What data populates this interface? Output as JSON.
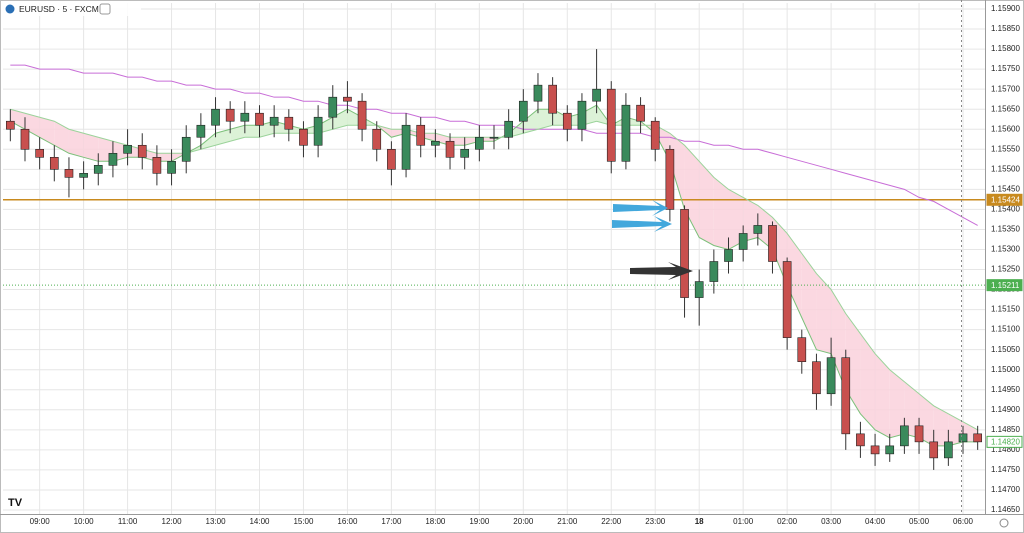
{
  "chart_data": {
    "type": "candlestick",
    "title": "EURUSD · 5 · FXCM",
    "categories": [
      null,
      null,
      "09:00",
      null,
      null,
      "10:00",
      null,
      null,
      "11:00",
      null,
      null,
      "12:00",
      null,
      null,
      "13:00",
      null,
      null,
      "14:00",
      null,
      null,
      "15:00",
      null,
      null,
      "16:00",
      null,
      null,
      "17:00",
      null,
      null,
      "18:00",
      null,
      null,
      "19:00",
      null,
      null,
      "20:00",
      null,
      null,
      "21:00",
      null,
      null,
      "22:00",
      null,
      null,
      "23:00",
      null,
      null,
      "18",
      null,
      null,
      "01:00",
      null,
      null,
      "02:00",
      null,
      null,
      "03:00",
      null,
      null,
      "04:00",
      null,
      null,
      "05:00",
      null,
      null,
      "06:00",
      null
    ],
    "open": [
      1.1562,
      1.156,
      1.1555,
      1.1553,
      1.155,
      1.1548,
      1.1549,
      1.1551,
      1.1554,
      1.1556,
      1.1553,
      1.1549,
      1.1552,
      1.1558,
      1.1561,
      1.1565,
      1.1562,
      1.1564,
      1.1561,
      1.1563,
      1.156,
      1.1556,
      1.1563,
      1.1568,
      1.1567,
      1.156,
      1.1555,
      1.155,
      1.1561,
      1.1556,
      1.1557,
      1.1553,
      1.1555,
      1.1558,
      1.1558,
      1.1562,
      1.1567,
      1.1571,
      1.1564,
      1.156,
      1.1567,
      1.157,
      1.1552,
      1.1566,
      1.1562,
      1.1555,
      1.154,
      1.1518,
      1.1522,
      1.1527,
      1.153,
      1.1534,
      1.1536,
      1.1527,
      1.1508,
      1.1502,
      1.1494,
      1.1503,
      1.1484,
      1.1481,
      1.1479,
      1.1481,
      1.1486,
      1.1482,
      1.1478,
      1.1482,
      1.1484
    ],
    "high": [
      1.1565,
      1.1563,
      1.1558,
      1.1556,
      1.1553,
      1.1552,
      1.1554,
      1.1557,
      1.156,
      1.1559,
      1.1556,
      1.1555,
      1.1561,
      1.1564,
      1.1568,
      1.1567,
      1.1567,
      1.1566,
      1.1566,
      1.1565,
      1.1562,
      1.1566,
      1.1571,
      1.1572,
      1.1569,
      1.1562,
      1.1557,
      1.1564,
      1.1563,
      1.156,
      1.1559,
      1.1558,
      1.1561,
      1.1561,
      1.1565,
      1.157,
      1.1574,
      1.1573,
      1.1566,
      1.1569,
      1.158,
      1.1572,
      1.1569,
      1.1568,
      1.1563,
      1.1556,
      1.1541,
      1.1525,
      1.153,
      1.1533,
      1.1536,
      1.1539,
      1.1537,
      1.1528,
      1.151,
      1.1504,
      1.1508,
      1.1505,
      1.1487,
      1.1484,
      1.1484,
      1.1488,
      1.1488,
      1.1485,
      1.1485,
      1.1486,
      1.1486
    ],
    "low": [
      1.1557,
      1.1552,
      1.155,
      1.1547,
      1.1543,
      1.1545,
      1.1546,
      1.1548,
      1.1551,
      1.155,
      1.1546,
      1.1546,
      1.1549,
      1.1555,
      1.1558,
      1.1559,
      1.1559,
      1.1558,
      1.1558,
      1.1557,
      1.1553,
      1.1553,
      1.156,
      1.1564,
      1.1557,
      1.1552,
      1.1546,
      1.1548,
      1.1553,
      1.1553,
      1.155,
      1.155,
      1.1552,
      1.1555,
      1.1555,
      1.1559,
      1.1564,
      1.1561,
      1.1557,
      1.1557,
      1.1564,
      1.1549,
      1.155,
      1.1559,
      1.1552,
      1.1537,
      1.1513,
      1.1511,
      1.1519,
      1.1524,
      1.1527,
      1.1531,
      1.1524,
      1.1505,
      1.1499,
      1.149,
      1.1491,
      1.148,
      1.1478,
      1.1476,
      1.1477,
      1.1479,
      1.1479,
      1.1475,
      1.1476,
      1.1479,
      1.148
    ],
    "close": [
      1.156,
      1.1555,
      1.1553,
      1.155,
      1.1548,
      1.1549,
      1.1551,
      1.1554,
      1.1556,
      1.1553,
      1.1549,
      1.1552,
      1.1558,
      1.1561,
      1.1565,
      1.1562,
      1.1564,
      1.1561,
      1.1563,
      1.156,
      1.1556,
      1.1563,
      1.1568,
      1.1567,
      1.156,
      1.1555,
      1.155,
      1.1561,
      1.1556,
      1.1557,
      1.1553,
      1.1555,
      1.1558,
      1.1558,
      1.1562,
      1.1567,
      1.1571,
      1.1564,
      1.156,
      1.1567,
      1.157,
      1.1552,
      1.1566,
      1.1562,
      1.1555,
      1.154,
      1.1518,
      1.1522,
      1.1527,
      1.153,
      1.1534,
      1.1536,
      1.1527,
      1.1508,
      1.1502,
      1.1494,
      1.1503,
      1.1484,
      1.1481,
      1.1479,
      1.1481,
      1.1486,
      1.1482,
      1.1478,
      1.1482,
      1.1484,
      1.1482
    ],
    "up_color": "#3a8a5c",
    "down_color": "#c8504e",
    "wick_color": "#333333",
    "series": [
      {
        "color": "#c86dd7",
        "values": [
          1.1576,
          1.1576,
          1.1575,
          1.1575,
          1.1575,
          1.1574,
          1.1574,
          1.1574,
          1.1573,
          1.1573,
          1.1572,
          1.1572,
          1.1571,
          1.1571,
          1.157,
          1.157,
          1.1569,
          1.1569,
          1.1568,
          1.1568,
          1.1567,
          1.1567,
          1.1566,
          1.1566,
          1.1565,
          1.1565,
          1.1564,
          1.1564,
          1.1563,
          1.1563,
          1.1562,
          1.1562,
          1.1561,
          1.1561,
          1.1561,
          1.156,
          1.156,
          1.156,
          1.156,
          1.156,
          1.1559,
          1.1559,
          1.1559,
          1.1559,
          1.1558,
          1.1558,
          1.1557,
          1.1557,
          1.1556,
          1.1556,
          1.1555,
          1.1555,
          1.1554,
          1.1553,
          1.1552,
          1.1551,
          1.155,
          1.1549,
          1.1548,
          1.1547,
          1.1546,
          1.1545,
          1.1543,
          1.1542,
          1.154,
          1.1538,
          1.1536
        ]
      },
      {
        "color": "#7cc07a",
        "values": [
          1.1562,
          1.156,
          1.1558,
          1.1556,
          1.1554,
          1.1553,
          1.1552,
          1.1552,
          1.1553,
          1.1553,
          1.1552,
          1.1552,
          1.1554,
          1.1556,
          1.1559,
          1.156,
          1.1561,
          1.1561,
          1.1562,
          1.1561,
          1.156,
          1.1561,
          1.1563,
          1.1565,
          1.1563,
          1.1561,
          1.1558,
          1.1559,
          1.1558,
          1.1557,
          1.1556,
          1.1556,
          1.1557,
          1.1557,
          1.1559,
          1.1562,
          1.1565,
          1.1565,
          1.1563,
          1.1564,
          1.1566,
          1.1561,
          1.1563,
          1.1562,
          1.1559,
          1.1552,
          1.154,
          1.1533,
          1.1531,
          1.153,
          1.1532,
          1.1533,
          1.153,
          1.1521,
          1.1513,
          1.1505,
          1.1504,
          1.1495,
          1.1489,
          1.1485,
          1.1483,
          1.1484,
          1.1483,
          1.1481,
          1.1481,
          1.1482,
          1.1482
        ]
      },
      {
        "color": "#9bd39a",
        "values": [
          1.1565,
          1.1564,
          1.1563,
          1.1562,
          1.156,
          1.1559,
          1.1558,
          1.1557,
          1.1556,
          1.1555,
          1.1554,
          1.1554,
          1.1554,
          1.1555,
          1.1556,
          1.1557,
          1.1558,
          1.1558,
          1.1559,
          1.1559,
          1.1559,
          1.1559,
          1.156,
          1.1561,
          1.1561,
          1.1561,
          1.156,
          1.156,
          1.1559,
          1.1559,
          1.1558,
          1.1558,
          1.1558,
          1.1558,
          1.1558,
          1.1559,
          1.156,
          1.1561,
          1.1561,
          1.1561,
          1.1562,
          1.1561,
          1.1561,
          1.1561,
          1.1561,
          1.1559,
          1.1556,
          1.1552,
          1.1548,
          1.1545,
          1.1543,
          1.1541,
          1.1538,
          1.1534,
          1.1529,
          1.1524,
          1.152,
          1.1514,
          1.1509,
          1.1504,
          1.15,
          1.1497,
          1.1494,
          1.1491,
          1.1489,
          1.1487,
          1.1485
        ]
      }
    ],
    "band_colors": {
      "up": "#d6f0d0",
      "down": "#fad1dc"
    },
    "ylim": [
      1.1464,
      1.15915
    ],
    "yticks": [
      {
        "value": 1.159,
        "label": "1.15900"
      },
      {
        "value": 1.1585,
        "label": "1.15850"
      },
      {
        "value": 1.158,
        "label": "1.15800"
      },
      {
        "value": 1.1575,
        "label": "1.15750"
      },
      {
        "value": 1.157,
        "label": "1.15700"
      },
      {
        "value": 1.1565,
        "label": "1.15650"
      },
      {
        "value": 1.156,
        "label": "1.15600"
      },
      {
        "value": 1.1555,
        "label": "1.15550"
      },
      {
        "value": 1.155,
        "label": "1.15500"
      },
      {
        "value": 1.1545,
        "label": "1.15450"
      },
      {
        "value": 1.154,
        "label": "1.15400"
      },
      {
        "value": 1.1535,
        "label": "1.15350"
      },
      {
        "value": 1.153,
        "label": "1.15300"
      },
      {
        "value": 1.1525,
        "label": "1.15250"
      },
      {
        "value": 1.152,
        "label": "1.15200"
      },
      {
        "value": 1.1515,
        "label": "1.15150"
      },
      {
        "value": 1.151,
        "label": "1.15100"
      },
      {
        "value": 1.1505,
        "label": "1.15050"
      },
      {
        "value": 1.15,
        "label": "1.15000"
      },
      {
        "value": 1.1495,
        "label": "1.14950"
      },
      {
        "value": 1.149,
        "label": "1.14900"
      },
      {
        "value": 1.1485,
        "label": "1.14850"
      },
      {
        "value": 1.148,
        "label": "1.14800"
      },
      {
        "value": 1.1475,
        "label": "1.14750"
      },
      {
        "value": 1.147,
        "label": "1.14700"
      },
      {
        "value": 1.1465,
        "label": "1.14650"
      }
    ],
    "grid": true,
    "price_lines": [
      {
        "value": 1.15424,
        "label": "1.15424",
        "color": "#c88a1e",
        "style": "solid"
      },
      {
        "value": 1.15211,
        "label": "1.15211",
        "color": "#4caf50",
        "style": "dotted"
      },
      {
        "value": 1.1482,
        "label": "1.14820",
        "color": "#4caf50",
        "style": "none"
      }
    ]
  }
}
